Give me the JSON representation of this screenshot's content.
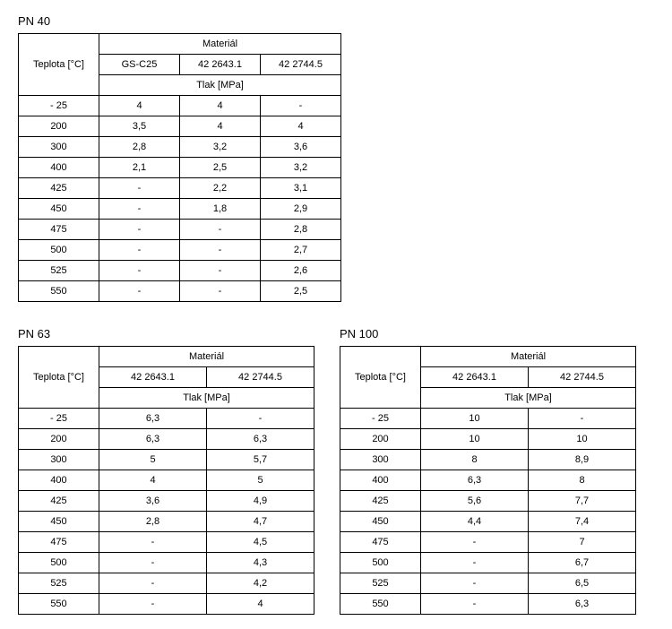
{
  "labels": {
    "row_header": "Teplota [°C]",
    "material": "Materiál",
    "tlak": "Tlak [MPa]"
  },
  "pn40": {
    "title": "PN 40",
    "materials": [
      "GS-C25",
      "42 2643.1",
      "42 2744.5"
    ],
    "rows": [
      {
        "t": "- 25",
        "v": [
          "4",
          "4",
          "-"
        ]
      },
      {
        "t": "200",
        "v": [
          "3,5",
          "4",
          "4"
        ]
      },
      {
        "t": "300",
        "v": [
          "2,8",
          "3,2",
          "3,6"
        ]
      },
      {
        "t": "400",
        "v": [
          "2,1",
          "2,5",
          "3,2"
        ]
      },
      {
        "t": "425",
        "v": [
          "-",
          "2,2",
          "3,1"
        ]
      },
      {
        "t": "450",
        "v": [
          "-",
          "1,8",
          "2,9"
        ]
      },
      {
        "t": "475",
        "v": [
          "-",
          "-",
          "2,8"
        ]
      },
      {
        "t": "500",
        "v": [
          "-",
          "-",
          "2,7"
        ]
      },
      {
        "t": "525",
        "v": [
          "-",
          "-",
          "2,6"
        ]
      },
      {
        "t": "550",
        "v": [
          "-",
          "-",
          "2,5"
        ]
      }
    ]
  },
  "pn63": {
    "title": "PN 63",
    "materials": [
      "42 2643.1",
      "42 2744.5"
    ],
    "rows": [
      {
        "t": "- 25",
        "v": [
          "6,3",
          "-"
        ]
      },
      {
        "t": "200",
        "v": [
          "6,3",
          "6,3"
        ]
      },
      {
        "t": "300",
        "v": [
          "5",
          "5,7"
        ]
      },
      {
        "t": "400",
        "v": [
          "4",
          "5"
        ]
      },
      {
        "t": "425",
        "v": [
          "3,6",
          "4,9"
        ]
      },
      {
        "t": "450",
        "v": [
          "2,8",
          "4,7"
        ]
      },
      {
        "t": "475",
        "v": [
          "-",
          "4,5"
        ]
      },
      {
        "t": "500",
        "v": [
          "-",
          "4,3"
        ]
      },
      {
        "t": "525",
        "v": [
          "-",
          "4,2"
        ]
      },
      {
        "t": "550",
        "v": [
          "-",
          "4"
        ]
      }
    ]
  },
  "pn100": {
    "title": "PN 100",
    "materials": [
      "42 2643.1",
      "42 2744.5"
    ],
    "rows": [
      {
        "t": "- 25",
        "v": [
          "10",
          "-"
        ]
      },
      {
        "t": "200",
        "v": [
          "10",
          "10"
        ]
      },
      {
        "t": "300",
        "v": [
          "8",
          "8,9"
        ]
      },
      {
        "t": "400",
        "v": [
          "6,3",
          "8"
        ]
      },
      {
        "t": "425",
        "v": [
          "5,6",
          "7,7"
        ]
      },
      {
        "t": "450",
        "v": [
          "4,4",
          "7,4"
        ]
      },
      {
        "t": "475",
        "v": [
          "-",
          "7"
        ]
      },
      {
        "t": "500",
        "v": [
          "-",
          "6,7"
        ]
      },
      {
        "t": "525",
        "v": [
          "-",
          "6,5"
        ]
      },
      {
        "t": "550",
        "v": [
          "-",
          "6,3"
        ]
      }
    ]
  }
}
